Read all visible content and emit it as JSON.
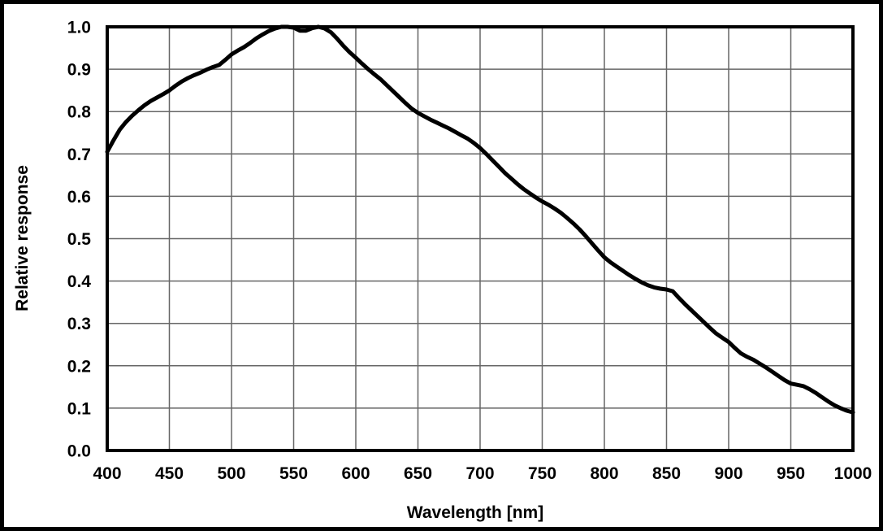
{
  "figure": {
    "background_color": "#ffffff",
    "frame_color": "#000000",
    "grid_color": "#666666",
    "axis_color": "#000000",
    "curve_color": "#000000"
  },
  "chart_data": {
    "type": "line",
    "title": "",
    "xlabel": "Wavelength [nm]",
    "ylabel": "Relative response",
    "xlim": [
      400,
      1000
    ],
    "ylim": [
      0.0,
      1.0
    ],
    "grid": true,
    "legend": "none",
    "x_ticks": [
      400,
      450,
      500,
      550,
      600,
      650,
      700,
      750,
      800,
      850,
      900,
      950,
      1000
    ],
    "y_ticks": [
      "0.0",
      "0.1",
      "0.2",
      "0.3",
      "0.4",
      "0.5",
      "0.6",
      "0.7",
      "0.8",
      "0.9",
      "1.0"
    ],
    "series": [
      {
        "name": "relative-response",
        "color": "#000000",
        "points": [
          [
            400,
            0.705
          ],
          [
            405,
            0.732
          ],
          [
            410,
            0.757
          ],
          [
            415,
            0.775
          ],
          [
            420,
            0.79
          ],
          [
            425,
            0.803
          ],
          [
            430,
            0.815
          ],
          [
            435,
            0.825
          ],
          [
            440,
            0.833
          ],
          [
            445,
            0.841
          ],
          [
            450,
            0.85
          ],
          [
            455,
            0.861
          ],
          [
            460,
            0.871
          ],
          [
            465,
            0.879
          ],
          [
            470,
            0.886
          ],
          [
            475,
            0.892
          ],
          [
            480,
            0.899
          ],
          [
            485,
            0.905
          ],
          [
            490,
            0.91
          ],
          [
            495,
            0.922
          ],
          [
            500,
            0.935
          ],
          [
            505,
            0.944
          ],
          [
            510,
            0.952
          ],
          [
            515,
            0.962
          ],
          [
            520,
            0.973
          ],
          [
            525,
            0.982
          ],
          [
            530,
            0.99
          ],
          [
            535,
            0.996
          ],
          [
            540,
            1.0
          ],
          [
            545,
            1.0
          ],
          [
            550,
            0.998
          ],
          [
            555,
            0.991
          ],
          [
            560,
            0.991
          ],
          [
            565,
            0.997
          ],
          [
            570,
            1.0
          ],
          [
            575,
            0.996
          ],
          [
            580,
            0.987
          ],
          [
            585,
            0.972
          ],
          [
            590,
            0.955
          ],
          [
            595,
            0.94
          ],
          [
            600,
            0.927
          ],
          [
            605,
            0.913
          ],
          [
            610,
            0.9
          ],
          [
            615,
            0.888
          ],
          [
            620,
            0.876
          ],
          [
            625,
            0.862
          ],
          [
            630,
            0.848
          ],
          [
            635,
            0.834
          ],
          [
            640,
            0.82
          ],
          [
            645,
            0.807
          ],
          [
            650,
            0.797
          ],
          [
            655,
            0.789
          ],
          [
            660,
            0.781
          ],
          [
            665,
            0.774
          ],
          [
            670,
            0.767
          ],
          [
            675,
            0.76
          ],
          [
            680,
            0.752
          ],
          [
            685,
            0.744
          ],
          [
            690,
            0.736
          ],
          [
            695,
            0.726
          ],
          [
            700,
            0.714
          ],
          [
            705,
            0.7
          ],
          [
            710,
            0.685
          ],
          [
            715,
            0.67
          ],
          [
            720,
            0.655
          ],
          [
            725,
            0.642
          ],
          [
            730,
            0.629
          ],
          [
            735,
            0.617
          ],
          [
            740,
            0.607
          ],
          [
            745,
            0.597
          ],
          [
            750,
            0.588
          ],
          [
            755,
            0.58
          ],
          [
            760,
            0.571
          ],
          [
            765,
            0.561
          ],
          [
            770,
            0.549
          ],
          [
            775,
            0.536
          ],
          [
            780,
            0.522
          ],
          [
            785,
            0.506
          ],
          [
            790,
            0.489
          ],
          [
            795,
            0.472
          ],
          [
            800,
            0.456
          ],
          [
            805,
            0.444
          ],
          [
            810,
            0.434
          ],
          [
            815,
            0.424
          ],
          [
            820,
            0.414
          ],
          [
            825,
            0.405
          ],
          [
            830,
            0.397
          ],
          [
            835,
            0.39
          ],
          [
            840,
            0.385
          ],
          [
            845,
            0.382
          ],
          [
            850,
            0.38
          ],
          [
            855,
            0.376
          ],
          [
            860,
            0.36
          ],
          [
            865,
            0.345
          ],
          [
            870,
            0.331
          ],
          [
            875,
            0.317
          ],
          [
            880,
            0.303
          ],
          [
            885,
            0.289
          ],
          [
            890,
            0.276
          ],
          [
            895,
            0.266
          ],
          [
            900,
            0.256
          ],
          [
            905,
            0.242
          ],
          [
            910,
            0.229
          ],
          [
            915,
            0.221
          ],
          [
            920,
            0.214
          ],
          [
            925,
            0.205
          ],
          [
            930,
            0.196
          ],
          [
            935,
            0.186
          ],
          [
            940,
            0.176
          ],
          [
            945,
            0.166
          ],
          [
            950,
            0.158
          ],
          [
            955,
            0.155
          ],
          [
            960,
            0.152
          ],
          [
            965,
            0.145
          ],
          [
            970,
            0.136
          ],
          [
            975,
            0.126
          ],
          [
            980,
            0.116
          ],
          [
            985,
            0.107
          ],
          [
            990,
            0.1
          ],
          [
            995,
            0.094
          ],
          [
            1000,
            0.09
          ]
        ]
      }
    ]
  }
}
